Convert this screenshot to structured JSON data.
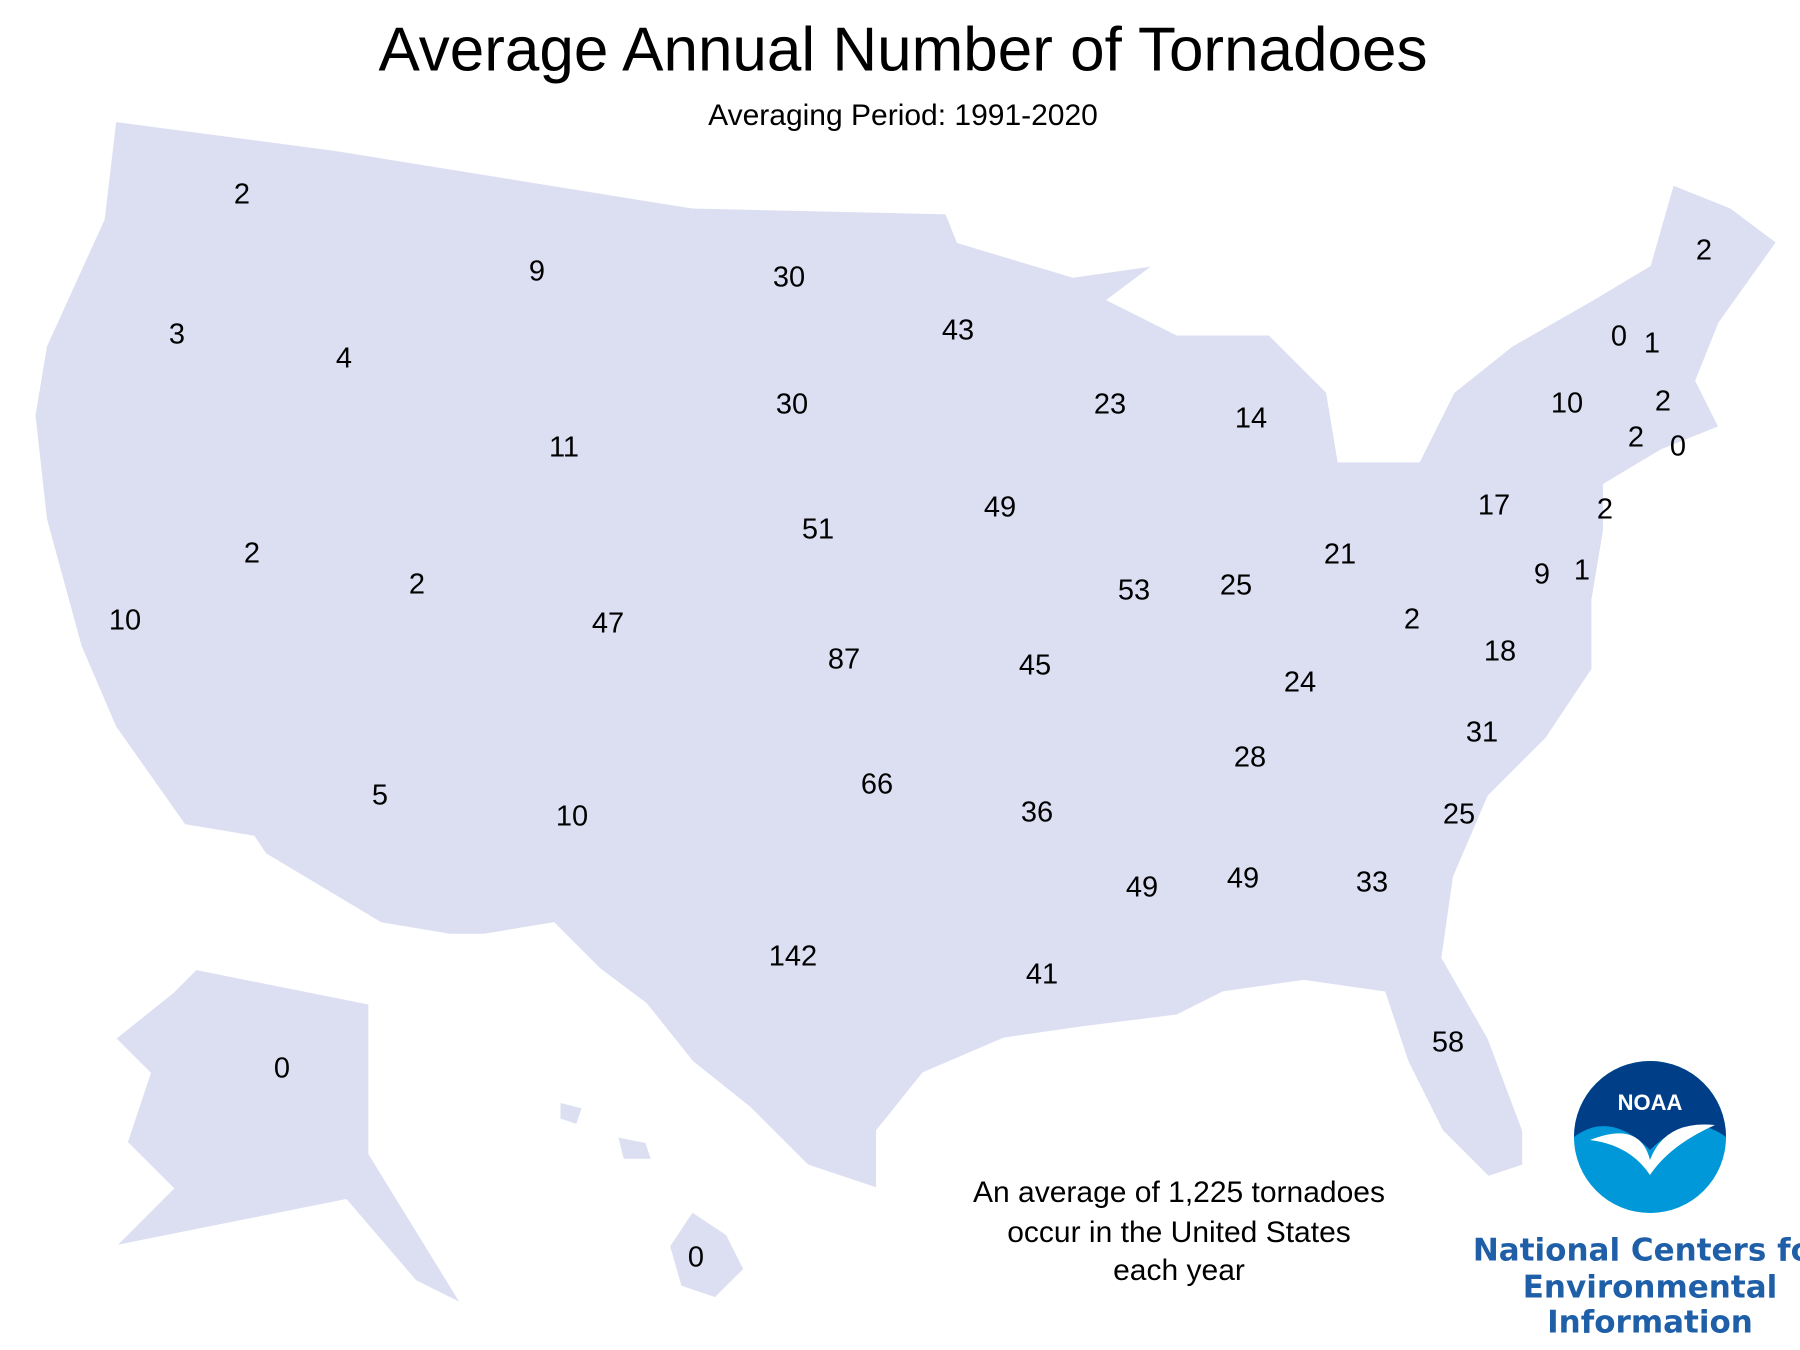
{
  "header": {
    "title": "Average Annual Number of Tornadoes",
    "subtitle": "Averaging Period: 1991-2020"
  },
  "map": {
    "values": [
      2,
      9,
      30,
      43,
      3,
      4,
      30,
      23,
      14,
      11,
      51,
      49,
      2,
      2,
      47,
      53,
      25,
      21,
      17,
      10,
      87,
      45,
      10,
      24,
      2,
      18,
      9,
      1,
      2,
      5,
      10,
      66,
      36,
      28,
      31,
      25,
      142,
      41,
      49,
      49,
      33,
      58,
      0,
      0,
      2,
      0,
      1,
      2,
      2,
      0
    ]
  },
  "note": [
    "An average of 1,225 tornadoes",
    "occur in the United States",
    "each year"
  ],
  "logo": {
    "emblem": "NOAA",
    "text": [
      "National Centers for",
      "Environmental",
      "Information"
    ]
  }
}
